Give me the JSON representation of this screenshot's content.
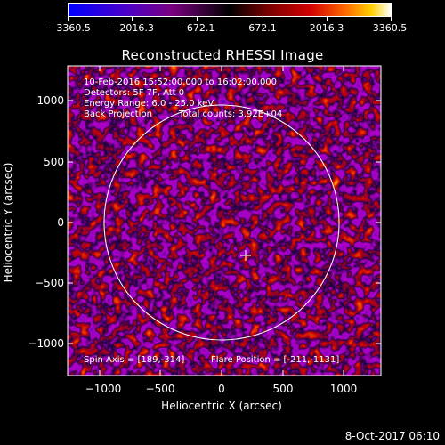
{
  "colorbar": {
    "tick_labels": [
      "−3360.5",
      "−2016.3",
      "−672.1",
      "672.1",
      "2016.3",
      "3360.5"
    ]
  },
  "title": "Reconstructed RHESSI Image",
  "annotations": {
    "time_range": "10-Feb-2016 15:52:00.000 to 16:02:00.000",
    "detectors": "Detectors: 5F 7F, Att 0",
    "energy_range": "Energy Range: 6.0 - 25.0 keV",
    "method": "Back Projection",
    "total_counts": "Total counts: 3.92E+04",
    "spin_axis": "Spin Axis = [189,-314]",
    "flare_position": "Flare Position = [-211,-1131]"
  },
  "axes": {
    "xlabel": "Heliocentric X (arcsec)",
    "ylabel": "Heliocentric Y (arcsec)",
    "x_ticks": [
      "−1000",
      "−500",
      "0",
      "500",
      "1000"
    ],
    "y_ticks": [
      "1000",
      "500",
      "0",
      "−500",
      "−1000"
    ]
  },
  "footer": {
    "date": "8-Oct-2017 06:10"
  },
  "colors": {
    "background": "#000000",
    "foreground": "#ffffff"
  }
}
